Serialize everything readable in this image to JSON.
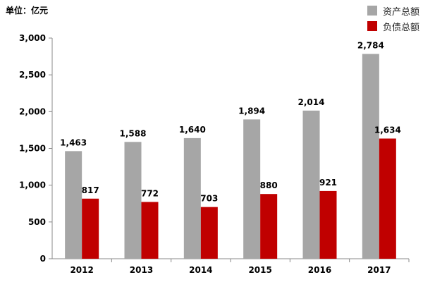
{
  "unit_label": "单位：亿元",
  "legend": [
    {
      "label": "资产总额",
      "color": "#a6a6a6"
    },
    {
      "label": "负债总额",
      "color": "#c00000"
    }
  ],
  "chart_data": {
    "type": "bar",
    "title": "",
    "xlabel": "",
    "ylabel": "",
    "categories": [
      "2012",
      "2013",
      "2014",
      "2015",
      "2016",
      "2017"
    ],
    "series": [
      {
        "name": "资产总额",
        "color": "#a6a6a6",
        "values": [
          1463,
          1588,
          1640,
          1894,
          2014,
          2784
        ],
        "labels": [
          "1,463",
          "1,588",
          "1,640",
          "1,894",
          "2,014",
          "2,784"
        ]
      },
      {
        "name": "负债总额",
        "color": "#c00000",
        "values": [
          817,
          772,
          703,
          880,
          921,
          1634
        ],
        "labels": [
          "817",
          "772",
          "703",
          "880",
          "921",
          "1,634"
        ]
      }
    ],
    "ylim": [
      0,
      3000
    ],
    "yticks": [
      0,
      500,
      1000,
      1500,
      2000,
      2500,
      3000
    ],
    "ytick_labels": [
      "0",
      "500",
      "1,000",
      "1,500",
      "2,000",
      "2,500",
      "3,000"
    ],
    "grid": false,
    "legend_position": "top-right"
  }
}
